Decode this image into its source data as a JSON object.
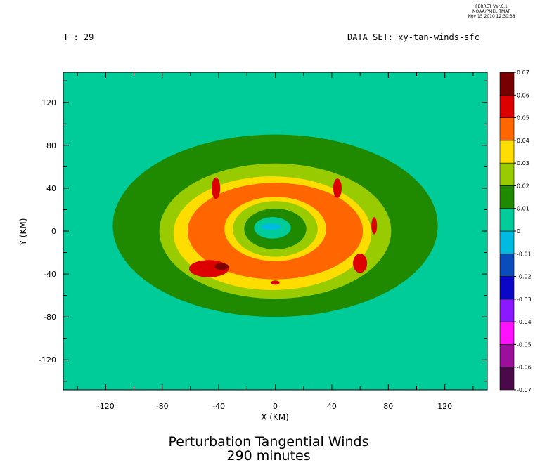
{
  "header": {
    "stamp": [
      "FERRET Ver.6.1",
      "NOAA/PMEL TMAP",
      "Nov 15 2010 12:30:38"
    ],
    "time_label": "T : 29",
    "dataset_label": "DATA SET: xy-tan-winds-sfc"
  },
  "title": {
    "line1": "Perturbation Tangential Winds",
    "line2": "290 minutes"
  },
  "chart_data": {
    "type": "heatmap",
    "xlabel": "X (KM)",
    "ylabel": "Y (KM)",
    "xlim": [
      -150,
      150
    ],
    "ylim": [
      -148,
      148
    ],
    "xticks": [
      -120,
      -80,
      -40,
      0,
      40,
      80,
      120
    ],
    "yticks": [
      -120,
      -80,
      -40,
      0,
      40,
      80,
      120
    ],
    "colorbar": {
      "levels": [
        -0.07,
        -0.06,
        -0.05,
        -0.04,
        -0.03,
        -0.02,
        -0.01,
        0,
        0.01,
        0.02,
        0.03,
        0.04,
        0.05,
        0.06,
        0.07
      ],
      "labels": [
        "-0.07",
        "-0.06",
        "-0.05",
        "-0.04",
        "-0.03",
        "-0.02",
        "-0.01",
        "0",
        "0.01",
        "0.02",
        "0.03",
        "0.04",
        "0.05",
        "0.06",
        "0.07"
      ],
      "colors": [
        "#4a0a4a",
        "#9c0f9c",
        "#ff10ff",
        "#8b19ff",
        "#0a08c6",
        "#0a4cbc",
        "#00bbdf",
        "#00cc99",
        "#1f8a00",
        "#99cc00",
        "#ffdd00",
        "#ff6600",
        "#dd0000",
        "#770000"
      ]
    },
    "contours": [
      {
        "level": 0.01,
        "center": [
          0,
          5
        ],
        "rx": 115,
        "ry": 85,
        "color": "#1f8a00"
      },
      {
        "level": 0.02,
        "center": [
          0,
          0
        ],
        "rx": 82,
        "ry": 63,
        "color": "#99cc00"
      },
      {
        "level": 0.03,
        "center": [
          -2,
          -2
        ],
        "rx": 70,
        "ry": 53,
        "color": "#ffdd00"
      },
      {
        "level": 0.04,
        "center": [
          0,
          0
        ],
        "rx": 62,
        "ry": 45,
        "color": "#ff6600"
      },
      {
        "level": 0.03,
        "center": [
          0,
          2
        ],
        "rx": 36,
        "ry": 30,
        "color": "#ffdd00"
      },
      {
        "level": 0.02,
        "center": [
          0,
          2
        ],
        "rx": 30,
        "ry": 26,
        "color": "#99cc00"
      },
      {
        "level": 0.01,
        "center": [
          0,
          2
        ],
        "rx": 22,
        "ry": 19,
        "color": "#1f8a00"
      },
      {
        "level": 0,
        "center": [
          -2,
          3
        ],
        "rx": 13,
        "ry": 10,
        "color": "#00cc99"
      },
      {
        "level": -0.01,
        "center": [
          -3,
          4
        ],
        "rx": 7,
        "ry": 3,
        "color": "#00bbdf"
      }
    ],
    "peaks": [
      {
        "level": 0.05,
        "center": [
          -47,
          -35
        ],
        "rx": 14,
        "ry": 8,
        "color": "#dd0000"
      },
      {
        "level": 0.06,
        "center": [
          -38,
          -33
        ],
        "rx": 5,
        "ry": 3,
        "color": "#770000"
      },
      {
        "level": 0.05,
        "center": [
          -42,
          40
        ],
        "rx": 3,
        "ry": 10,
        "color": "#dd0000"
      },
      {
        "level": 0.05,
        "center": [
          44,
          40
        ],
        "rx": 3,
        "ry": 9,
        "color": "#dd0000"
      },
      {
        "level": 0.05,
        "center": [
          60,
          -30
        ],
        "rx": 5,
        "ry": 9,
        "color": "#dd0000"
      },
      {
        "level": 0.05,
        "center": [
          70,
          5
        ],
        "rx": 2,
        "ry": 8,
        "color": "#dd0000"
      },
      {
        "level": 0.05,
        "center": [
          0,
          -48
        ],
        "rx": 3,
        "ry": 2,
        "color": "#dd0000"
      }
    ],
    "grid": false,
    "legend": "colorbar-right"
  }
}
